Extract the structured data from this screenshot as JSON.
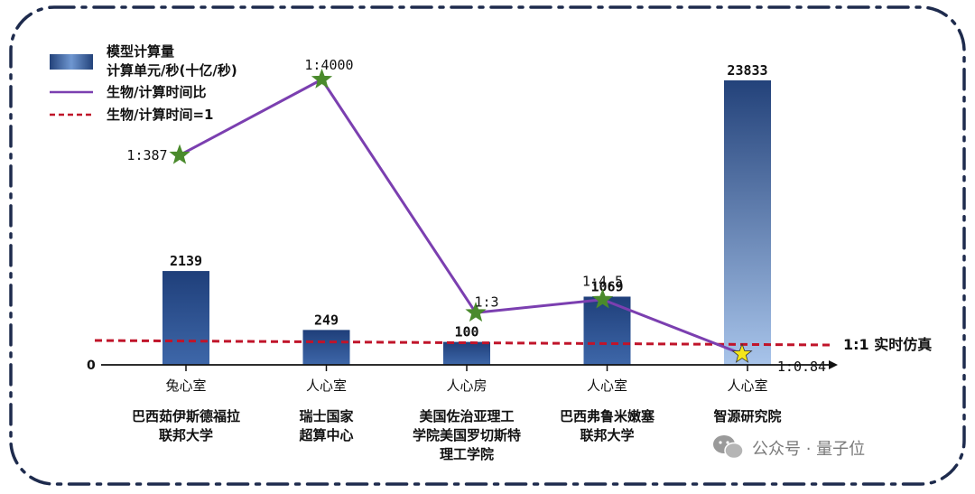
{
  "chart_data": {
    "type": "bar",
    "categories": [
      "兔心室",
      "人心室",
      "人心房",
      "人心室",
      "人心室"
    ],
    "institutions": [
      [
        "巴西茹伊斯德福拉",
        "联邦大学"
      ],
      [
        "瑞士国家",
        "超算中心"
      ],
      [
        "美国佐治亚理工",
        "学院美国罗切斯特",
        "理工学院"
      ],
      [
        "巴西弗鲁米嫩塞",
        "联邦大学"
      ],
      [
        "智源研究院"
      ]
    ],
    "series": [
      {
        "name": "模型计算量 计算单元/秒(十亿/秒)",
        "type": "bar",
        "values": [
          2139,
          249,
          100,
          1069,
          23833
        ],
        "labels": [
          "2139",
          "249",
          "100",
          "1069",
          "23833"
        ]
      },
      {
        "name": "生物/计算时间比",
        "type": "line",
        "values": [
          387,
          4000,
          3,
          4.5,
          0.84
        ],
        "labels": [
          "1:387",
          "1:4000",
          "1:3",
          "1:4.5",
          "1:0.84"
        ]
      },
      {
        "name": "生物/计算时间=1",
        "type": "reference",
        "value": 1,
        "label": "1:1  实时仿真"
      }
    ],
    "legend": {
      "placement": "top-left",
      "entries": [
        {
          "line1": "模型计算量",
          "line2": "计算单元/秒(十亿/秒)",
          "style": "bar"
        },
        {
          "line1": "生物/计算时间比",
          "style": "line"
        },
        {
          "line1": "生物/计算时间=1",
          "style": "dashed"
        }
      ]
    },
    "y_origin_label": "0",
    "highlight_index": 4
  },
  "watermark": {
    "text": "公众号 · 量子位",
    "icon": "wechat-icon"
  },
  "colors": {
    "bar_top": "#23427a",
    "bar_bottom": "#a8c4ea",
    "line": "#7b3fb0",
    "star": "#4a8a2c",
    "star_highlight": "#f5e61a",
    "reference": "#c0142a",
    "frame": "#1e2b4d"
  }
}
